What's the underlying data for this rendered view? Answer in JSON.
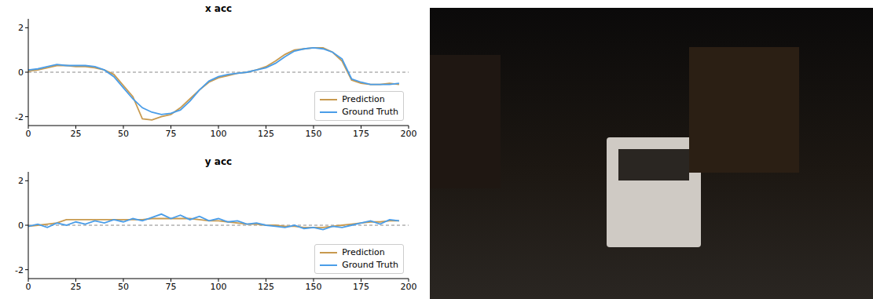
{
  "chart_data": [
    {
      "type": "line",
      "title": "x acc",
      "x": [
        0,
        5,
        10,
        15,
        20,
        25,
        30,
        35,
        40,
        45,
        50,
        55,
        60,
        65,
        70,
        75,
        80,
        85,
        90,
        95,
        100,
        105,
        110,
        115,
        120,
        125,
        130,
        135,
        140,
        145,
        150,
        155,
        160,
        165,
        170,
        175,
        180,
        185,
        190,
        195
      ],
      "series": [
        {
          "name": "Prediction",
          "color": "#c89a4f",
          "values": [
            0.05,
            0.1,
            0.2,
            0.3,
            0.3,
            0.25,
            0.25,
            0.2,
            0.1,
            -0.1,
            -0.6,
            -1.1,
            -2.1,
            -2.15,
            -2.0,
            -1.9,
            -1.6,
            -1.2,
            -0.8,
            -0.45,
            -0.25,
            -0.15,
            -0.05,
            0.0,
            0.1,
            0.25,
            0.5,
            0.8,
            1.0,
            1.05,
            1.1,
            1.1,
            0.9,
            0.5,
            -0.35,
            -0.5,
            -0.55,
            -0.55,
            -0.5,
            -0.55
          ]
        },
        {
          "name": "Ground Truth",
          "color": "#4a9de8",
          "values": [
            0.1,
            0.15,
            0.25,
            0.35,
            0.3,
            0.3,
            0.3,
            0.25,
            0.1,
            -0.2,
            -0.7,
            -1.2,
            -1.6,
            -1.8,
            -1.9,
            -1.85,
            -1.7,
            -1.3,
            -0.8,
            -0.4,
            -0.2,
            -0.1,
            -0.05,
            0.0,
            0.1,
            0.2,
            0.4,
            0.7,
            0.95,
            1.05,
            1.1,
            1.05,
            0.9,
            0.6,
            -0.3,
            -0.45,
            -0.55,
            -0.55,
            -0.55,
            -0.5
          ]
        }
      ],
      "xlim": [
        0,
        200
      ],
      "xticks": [
        0,
        25,
        50,
        75,
        100,
        125,
        150,
        175,
        200
      ],
      "ylim": [
        -2.4,
        2.4
      ],
      "yticks": [
        -2,
        0,
        2
      ],
      "hline": 0,
      "legend": "lower right"
    },
    {
      "type": "line",
      "title": "y acc",
      "x": [
        0,
        5,
        10,
        15,
        20,
        25,
        30,
        35,
        40,
        45,
        50,
        55,
        60,
        65,
        70,
        75,
        80,
        85,
        90,
        95,
        100,
        105,
        110,
        115,
        120,
        125,
        130,
        135,
        140,
        145,
        150,
        155,
        160,
        165,
        170,
        175,
        180,
        185,
        190,
        195
      ],
      "series": [
        {
          "name": "Prediction",
          "color": "#c89a4f",
          "values": [
            -0.05,
            0.0,
            0.05,
            0.1,
            0.25,
            0.25,
            0.25,
            0.25,
            0.25,
            0.25,
            0.25,
            0.25,
            0.25,
            0.3,
            0.3,
            0.3,
            0.3,
            0.3,
            0.25,
            0.2,
            0.2,
            0.15,
            0.1,
            0.05,
            0.05,
            0.0,
            0.0,
            -0.05,
            -0.05,
            -0.1,
            -0.1,
            -0.1,
            -0.05,
            0.0,
            0.05,
            0.1,
            0.15,
            0.15,
            0.2,
            0.2
          ]
        },
        {
          "name": "Ground Truth",
          "color": "#4a9de8",
          "values": [
            -0.05,
            0.05,
            -0.1,
            0.1,
            0.0,
            0.15,
            0.05,
            0.2,
            0.1,
            0.25,
            0.15,
            0.3,
            0.2,
            0.35,
            0.5,
            0.3,
            0.45,
            0.25,
            0.4,
            0.2,
            0.3,
            0.15,
            0.2,
            0.05,
            0.1,
            0.0,
            -0.05,
            -0.1,
            0.0,
            -0.15,
            -0.1,
            -0.2,
            -0.05,
            -0.1,
            0.0,
            0.1,
            0.2,
            0.05,
            0.25,
            0.2
          ]
        }
      ],
      "xlim": [
        0,
        200
      ],
      "xticks": [
        0,
        25,
        50,
        75,
        100,
        125,
        150,
        175,
        200
      ],
      "ylim": [
        -2.4,
        2.4
      ],
      "yticks": [
        -2,
        0,
        2
      ],
      "hline": 0,
      "legend": "lower right"
    }
  ]
}
